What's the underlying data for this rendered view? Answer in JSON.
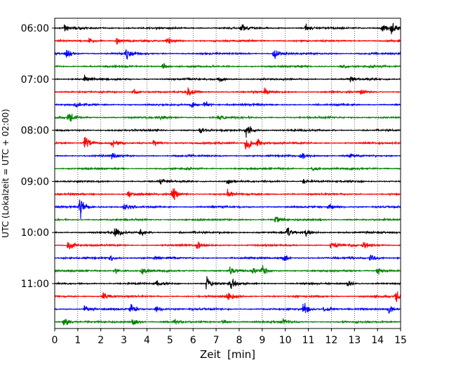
{
  "chart_data": {
    "type": "line",
    "title": "",
    "xlabel": "Zeit  [min]",
    "ylabel": "UTC (Lokalzeit = UTC + 02:00)",
    "xlim": [
      0,
      15
    ],
    "x_ticks": [
      "0",
      "1",
      "2",
      "3",
      "4",
      "5",
      "6",
      "7",
      "8",
      "9",
      "10",
      "11",
      "12",
      "13",
      "14",
      "15"
    ],
    "y_ticks": [
      "06:00",
      "07:00",
      "08:00",
      "09:00",
      "10:00",
      "11:00"
    ],
    "grid": "vertical dotted lines at each minute",
    "trace_interval_minutes": 15,
    "trace_colors": [
      "#000000",
      "#ff0000",
      "#0000ff",
      "#008000"
    ],
    "series": [
      {
        "start": "06:00",
        "events": [
          [
            0.45,
            0.5
          ],
          [
            8.1,
            0.55
          ],
          [
            10.9,
            0.5
          ],
          [
            14.2,
            0.5
          ],
          [
            14.6,
            0.7
          ]
        ]
      },
      {
        "start": "06:15",
        "events": [
          [
            1.5,
            0.35
          ],
          [
            2.7,
            0.5
          ],
          [
            4.9,
            0.55
          ]
        ]
      },
      {
        "start": "06:30",
        "events": [
          [
            0.5,
            0.5
          ],
          [
            3.1,
            0.75
          ],
          [
            9.5,
            0.75
          ]
        ]
      },
      {
        "start": "06:45",
        "events": [
          [
            4.7,
            0.35
          ],
          [
            12.4,
            0.35
          ]
        ]
      },
      {
        "start": "07:00",
        "events": [
          [
            1.3,
            0.45
          ],
          [
            7.1,
            0.4
          ],
          [
            12.8,
            0.35
          ]
        ]
      },
      {
        "start": "07:15",
        "events": [
          [
            3.4,
            0.4
          ],
          [
            5.8,
            0.5
          ],
          [
            9.1,
            0.35
          ],
          [
            13.3,
            0.35
          ]
        ]
      },
      {
        "start": "07:30",
        "events": [
          [
            0.9,
            0.35
          ],
          [
            5.9,
            0.45
          ],
          [
            6.5,
            0.45
          ]
        ]
      },
      {
        "start": "07:45",
        "events": [
          [
            0.6,
            0.8
          ],
          [
            4.6,
            0.3
          ],
          [
            7.1,
            0.3
          ]
        ]
      },
      {
        "start": "08:00",
        "events": [
          [
            6.3,
            0.4
          ],
          [
            8.3,
            0.85
          ]
        ]
      },
      {
        "start": "08:15",
        "events": [
          [
            1.3,
            1.1
          ],
          [
            2.5,
            0.45
          ],
          [
            4.3,
            0.35
          ],
          [
            8.3,
            1.1
          ],
          [
            8.8,
            0.45
          ]
        ]
      },
      {
        "start": "08:30",
        "events": [
          [
            2.5,
            0.45
          ],
          [
            10.7,
            0.6
          ],
          [
            12.7,
            0.3
          ]
        ]
      },
      {
        "start": "08:45",
        "events": [
          [
            11.2,
            0.3
          ]
        ]
      },
      {
        "start": "09:00",
        "events": [
          [
            4.6,
            0.4
          ],
          [
            7.5,
            0.35
          ],
          [
            10.8,
            0.3
          ]
        ]
      },
      {
        "start": "09:15",
        "events": [
          [
            3.2,
            0.5
          ],
          [
            5.1,
            1.1
          ],
          [
            7.5,
            0.45
          ]
        ]
      },
      {
        "start": "09:30",
        "events": [
          [
            1.1,
            1.3
          ],
          [
            3.0,
            0.5
          ],
          [
            11.9,
            0.55
          ]
        ]
      },
      {
        "start": "09:45",
        "events": [
          [
            9.6,
            0.55
          ]
        ]
      },
      {
        "start": "10:00",
        "events": [
          [
            2.6,
            0.6
          ],
          [
            3.7,
            0.5
          ],
          [
            10.1,
            0.75
          ],
          [
            10.9,
            0.45
          ]
        ]
      },
      {
        "start": "10:15",
        "events": [
          [
            0.6,
            0.75
          ],
          [
            6.2,
            0.55
          ],
          [
            12.0,
            0.65
          ],
          [
            13.4,
            0.45
          ]
        ]
      },
      {
        "start": "10:30",
        "events": [
          [
            2.4,
            0.35
          ],
          [
            4.3,
            0.3
          ],
          [
            9.9,
            0.45
          ],
          [
            13.7,
            0.55
          ]
        ]
      },
      {
        "start": "10:45",
        "events": [
          [
            2.6,
            0.45
          ],
          [
            3.8,
            0.4
          ],
          [
            7.6,
            0.5
          ],
          [
            8.6,
            0.35
          ],
          [
            9.0,
            0.45
          ],
          [
            14.0,
            0.45
          ]
        ]
      },
      {
        "start": "11:00",
        "events": [
          [
            4.4,
            0.4
          ],
          [
            6.6,
            0.7
          ],
          [
            7.6,
            0.65
          ],
          [
            12.7,
            0.4
          ]
        ]
      },
      {
        "start": "11:15",
        "events": [
          [
            2.1,
            0.5
          ],
          [
            7.5,
            0.5
          ],
          [
            14.8,
            0.75
          ]
        ]
      },
      {
        "start": "11:30",
        "events": [
          [
            1.3,
            0.4
          ],
          [
            3.3,
            0.7
          ],
          [
            4.4,
            0.45
          ],
          [
            10.8,
            0.75
          ],
          [
            11.7,
            0.55
          ],
          [
            14.5,
            0.45
          ]
        ]
      },
      {
        "start": "11:45",
        "events": [
          [
            0.4,
            0.5
          ],
          [
            3.4,
            0.45
          ],
          [
            5.2,
            0.3
          ],
          [
            7.3,
            0.3
          ],
          [
            9.9,
            0.3
          ]
        ]
      }
    ]
  }
}
